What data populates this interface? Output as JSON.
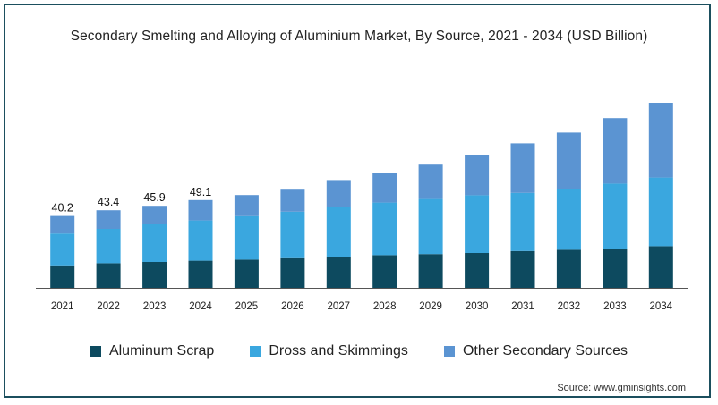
{
  "chart_data": {
    "type": "bar",
    "stacked": true,
    "title": "Secondary Smelting and Alloying of Aluminium Market, By Source, 2021 - 2034 (USD Billion)",
    "categories": [
      "2021",
      "2022",
      "2023",
      "2024",
      "2025",
      "2026",
      "2027",
      "2028",
      "2029",
      "2030",
      "2031",
      "2032",
      "2033",
      "2034"
    ],
    "series": [
      {
        "name": "Aluminum Scrap",
        "color": "#0d4a5f",
        "values": [
          12.6,
          13.8,
          14.5,
          15.2,
          15.8,
          16.6,
          17.4,
          18.3,
          18.9,
          19.5,
          20.6,
          21.3,
          22.0,
          23.3
        ]
      },
      {
        "name": "Dross and Skimmings",
        "color": "#3aa7df",
        "values": [
          17.8,
          19.2,
          21.0,
          22.5,
          24.3,
          26.0,
          27.9,
          29.4,
          30.8,
          32.3,
          32.5,
          34.2,
          36.3,
          38.4
        ]
      },
      {
        "name": "Other Secondary Sources",
        "color": "#5b94d2",
        "values": [
          9.8,
          10.4,
          10.4,
          11.4,
          11.8,
          12.8,
          15.0,
          16.7,
          19.7,
          22.7,
          27.7,
          31.3,
          36.6,
          41.8
        ]
      }
    ],
    "data_labels": [
      "40.2",
      "43.4",
      "45.9",
      "49.1"
    ],
    "ylim": [
      0,
      115
    ],
    "xlabel": "",
    "ylabel": "",
    "grid": false,
    "legend_position": "bottom"
  },
  "source_text": "Source: www.gminsights.com"
}
